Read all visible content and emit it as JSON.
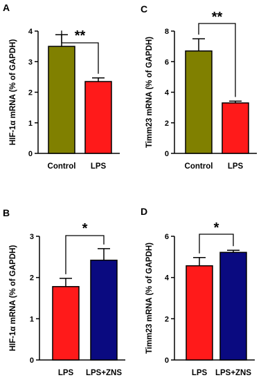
{
  "chart_data": [
    {
      "panel": "A",
      "type": "bar",
      "categories": [
        "Control",
        "LPS"
      ],
      "values": [
        3.5,
        2.35
      ],
      "errors": [
        0.38,
        0.12
      ],
      "colors": [
        "#808000",
        "#ff1a1a"
      ],
      "ylabel": "HIF-1α mRNA (% of GAPDH)",
      "ylim": [
        0,
        4
      ],
      "yticks": [
        0,
        1,
        2,
        3,
        4
      ],
      "significance": "**"
    },
    {
      "panel": "C",
      "type": "bar",
      "categories": [
        "Control",
        "LPS"
      ],
      "values": [
        6.7,
        3.3
      ],
      "errors": [
        0.8,
        0.12
      ],
      "colors": [
        "#808000",
        "#ff1a1a"
      ],
      "ylabel": "Timm23 mRNA (% of GAPDH)",
      "ylim": [
        0,
        8
      ],
      "yticks": [
        0,
        2,
        4,
        6,
        8
      ],
      "significance": "**"
    },
    {
      "panel": "B",
      "type": "bar",
      "categories": [
        "LPS",
        "LPS+ZNS"
      ],
      "values": [
        1.78,
        2.42
      ],
      "errors": [
        0.2,
        0.28
      ],
      "colors": [
        "#ff1a1a",
        "#0a0a80"
      ],
      "ylabel": "HIF-1α mRNA (% of GAPDH)",
      "ylim": [
        0,
        3
      ],
      "yticks": [
        0,
        1,
        2,
        3
      ],
      "significance": "*"
    },
    {
      "panel": "D",
      "type": "bar",
      "categories": [
        "LPS",
        "LPS+ZNS"
      ],
      "values": [
        4.57,
        5.22
      ],
      "errors": [
        0.4,
        0.1
      ],
      "colors": [
        "#ff1a1a",
        "#0a0a80"
      ],
      "ylabel": "Timm23 mRNA (% of GAPDH)",
      "ylim": [
        0,
        6
      ],
      "yticks": [
        0,
        2,
        4,
        6
      ],
      "significance": "*"
    }
  ]
}
